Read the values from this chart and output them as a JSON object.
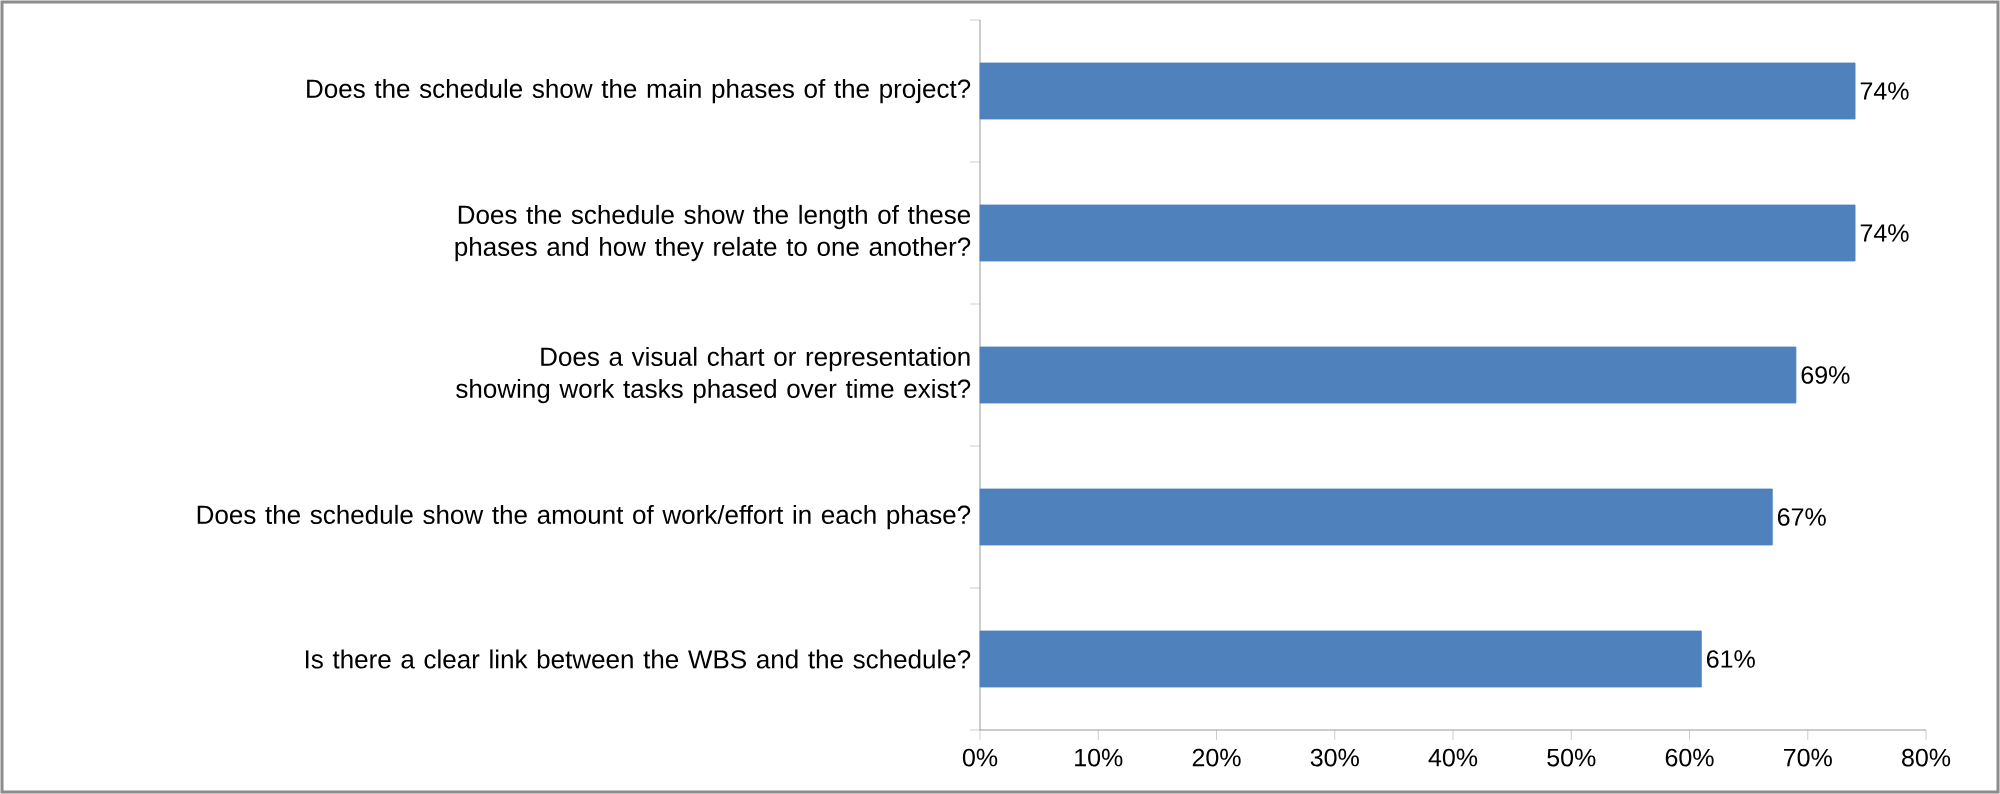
{
  "chart_data": {
    "type": "bar",
    "orientation": "horizontal",
    "categories": [
      "Does the schedule show the main phases of the project?",
      "Does the schedule show the length of these phases and how they relate to one another?",
      "Does a visual chart or representation showing work tasks phased over time exist?",
      "Does the schedule show the amount of work/effort in each phase?",
      "Is there a clear link between the WBS and the schedule?"
    ],
    "values": [
      74,
      74,
      69,
      67,
      61
    ],
    "value_labels": [
      "74%",
      "74%",
      "69%",
      "67%",
      "61%"
    ],
    "color": "#4f81bd",
    "xlim": [
      0,
      80
    ],
    "xticks": [
      {
        "value": 0,
        "label": "0%"
      },
      {
        "value": 10,
        "label": "10%"
      },
      {
        "value": 20,
        "label": "20%"
      },
      {
        "value": 30,
        "label": "30%"
      },
      {
        "value": 40,
        "label": "40%"
      },
      {
        "value": 50,
        "label": "50%"
      },
      {
        "value": 60,
        "label": "60%"
      },
      {
        "value": 70,
        "label": "70%"
      },
      {
        "value": 80,
        "label": "80%"
      }
    ],
    "grid": false
  }
}
